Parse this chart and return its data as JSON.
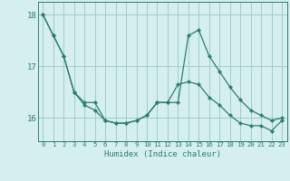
{
  "xlabel": "Humidex (Indice chaleur)",
  "background_color": "#d4efed",
  "grid_color": "#a0ccca",
  "line_color": "#2e7d70",
  "x_ticks": [
    0,
    1,
    2,
    3,
    4,
    5,
    6,
    7,
    8,
    9,
    10,
    11,
    12,
    13,
    14,
    15,
    16,
    17,
    18,
    19,
    20,
    21,
    22,
    23
  ],
  "y_ticks": [
    16,
    17,
    18
  ],
  "ylim": [
    15.55,
    18.25
  ],
  "xlim": [
    -0.5,
    23.5
  ],
  "series1": [
    18.0,
    17.6,
    17.2,
    16.5,
    16.25,
    16.15,
    15.95,
    15.9,
    15.9,
    15.95,
    16.05,
    16.3,
    16.3,
    16.3,
    17.6,
    17.7,
    17.2,
    16.9,
    16.6,
    16.35,
    16.15,
    16.05,
    15.95,
    16.0
  ],
  "series2": [
    18.0,
    17.6,
    17.2,
    16.5,
    16.3,
    16.3,
    15.95,
    15.9,
    15.9,
    15.95,
    16.05,
    16.3,
    16.3,
    16.65,
    16.7,
    16.65,
    16.4,
    16.25,
    16.05,
    15.9,
    15.85,
    15.85,
    15.75,
    15.95
  ]
}
